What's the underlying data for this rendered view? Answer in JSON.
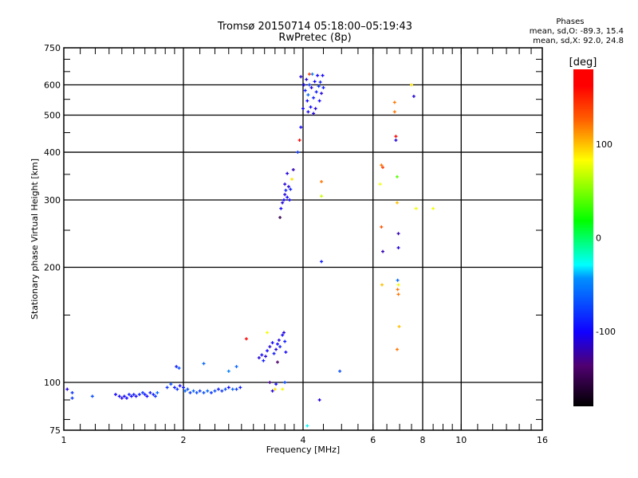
{
  "chart_data": {
    "type": "scatter",
    "title": "Tromsø 20150714 05:18:00–05:19:43",
    "subtitle": "RwPretec (8p)",
    "xlabel": "Frequency [MHz]",
    "ylabel": "Stationary phase Virtual Height [km]",
    "xscale": "log",
    "yscale": "log",
    "xlim": [
      1,
      16
    ],
    "ylim": [
      75,
      750
    ],
    "xticks": [
      "1",
      "2",
      "4",
      "6",
      "8",
      "10",
      "16"
    ],
    "xtick_values": [
      1,
      2,
      4,
      6,
      8,
      10,
      16
    ],
    "yticks": [
      "75",
      "100",
      "200",
      "300",
      "400",
      "500",
      "600",
      "750"
    ],
    "ytick_values": [
      75,
      100,
      200,
      300,
      400,
      500,
      600,
      750
    ],
    "xgrid": [
      2,
      4,
      6,
      8,
      10
    ],
    "ygrid": [
      100,
      200,
      300,
      400,
      500,
      600
    ],
    "phase_stats": {
      "header": "Phases",
      "o_line": "mean, sd,O: -89.3, 15.4",
      "x_line": "mean, sd,X:  92.0, 24.8"
    },
    "colorbar": {
      "label": "[deg]",
      "range": [
        -180,
        180
      ],
      "ticks": [
        "100",
        "0",
        "-100"
      ],
      "tick_values": [
        100,
        0,
        -100
      ],
      "colormap": "rainbow (black-purple-blue-cyan-green-yellow-red)"
    },
    "point_fields": [
      "frequency_MHz",
      "height_km",
      "phase_deg"
    ],
    "points": [
      [
        1.02,
        96,
        -110
      ],
      [
        1.05,
        94,
        -80
      ],
      [
        1.05,
        91,
        -80
      ],
      [
        1.18,
        92,
        -70
      ],
      [
        1.35,
        93,
        -100
      ],
      [
        1.38,
        92,
        -100
      ],
      [
        1.4,
        91,
        -110
      ],
      [
        1.42,
        92,
        -100
      ],
      [
        1.44,
        91,
        -100
      ],
      [
        1.46,
        93,
        -90
      ],
      [
        1.48,
        92,
        -100
      ],
      [
        1.5,
        93,
        -90
      ],
      [
        1.52,
        92,
        -100
      ],
      [
        1.55,
        93,
        -90
      ],
      [
        1.58,
        94,
        -80
      ],
      [
        1.6,
        93,
        -90
      ],
      [
        1.62,
        92,
        -100
      ],
      [
        1.65,
        94,
        -90
      ],
      [
        1.68,
        93,
        -90
      ],
      [
        1.7,
        92,
        -80
      ],
      [
        1.72,
        94,
        -60
      ],
      [
        1.82,
        97,
        -80
      ],
      [
        1.86,
        99,
        -70
      ],
      [
        1.9,
        97,
        -90
      ],
      [
        1.93,
        96,
        -80
      ],
      [
        1.96,
        98,
        -100
      ],
      [
        2.0,
        97,
        -90
      ],
      [
        2.02,
        95,
        -60
      ],
      [
        2.05,
        96,
        -70
      ],
      [
        2.08,
        94,
        -80
      ],
      [
        2.12,
        95,
        -60
      ],
      [
        2.16,
        94,
        -70
      ],
      [
        2.2,
        95,
        -80
      ],
      [
        2.25,
        94,
        -70
      ],
      [
        2.3,
        95,
        -60
      ],
      [
        2.35,
        94,
        -80
      ],
      [
        2.4,
        95,
        -70
      ],
      [
        2.45,
        96,
        -90
      ],
      [
        2.5,
        95,
        -80
      ],
      [
        2.55,
        96,
        -70
      ],
      [
        2.6,
        97,
        -100
      ],
      [
        2.66,
        96,
        -60
      ],
      [
        2.72,
        96,
        -80
      ],
      [
        2.78,
        97,
        -90
      ],
      [
        1.92,
        110,
        -90
      ],
      [
        1.95,
        109,
        -70
      ],
      [
        2.25,
        112,
        -60
      ],
      [
        2.6,
        107,
        -50
      ],
      [
        2.72,
        110,
        -60
      ],
      [
        2.88,
        130,
        170
      ],
      [
        3.1,
        116,
        -110
      ],
      [
        3.15,
        118,
        -100
      ],
      [
        3.18,
        114,
        -90
      ],
      [
        3.22,
        117,
        -110
      ],
      [
        3.25,
        121,
        -100
      ],
      [
        3.3,
        124,
        -110
      ],
      [
        3.35,
        127,
        -100
      ],
      [
        3.38,
        119,
        -90
      ],
      [
        3.42,
        122,
        -110
      ],
      [
        3.45,
        126,
        -100
      ],
      [
        3.48,
        129,
        -110
      ],
      [
        3.5,
        124,
        -90
      ],
      [
        3.55,
        133,
        -100
      ],
      [
        3.58,
        135,
        -110
      ],
      [
        3.6,
        128,
        -90
      ],
      [
        3.62,
        120,
        -100
      ],
      [
        3.25,
        135,
        80
      ],
      [
        3.45,
        113,
        -140
      ],
      [
        3.3,
        100,
        -130
      ],
      [
        3.4,
        96,
        90
      ],
      [
        3.55,
        96,
        80
      ],
      [
        3.6,
        100,
        -70
      ],
      [
        3.42,
        99,
        -100
      ],
      [
        3.35,
        95,
        -110
      ],
      [
        3.5,
        270,
        -150
      ],
      [
        3.52,
        285,
        -100
      ],
      [
        3.55,
        295,
        -110
      ],
      [
        3.58,
        300,
        -100
      ],
      [
        3.6,
        310,
        -110
      ],
      [
        3.62,
        318,
        -90
      ],
      [
        3.65,
        305,
        -100
      ],
      [
        3.68,
        325,
        -110
      ],
      [
        3.7,
        300,
        -100
      ],
      [
        3.72,
        320,
        -90
      ],
      [
        3.6,
        330,
        -110
      ],
      [
        3.75,
        340,
        90
      ],
      [
        3.65,
        352,
        -110
      ],
      [
        3.78,
        360,
        -120
      ],
      [
        3.88,
        400,
        -80
      ],
      [
        3.92,
        430,
        160
      ],
      [
        3.95,
        465,
        -100
      ],
      [
        4.02,
        600,
        -100
      ],
      [
        4.05,
        580,
        -90
      ],
      [
        4.08,
        620,
        -110
      ],
      [
        4.1,
        545,
        -100
      ],
      [
        4.12,
        565,
        -60
      ],
      [
        4.15,
        600,
        -80
      ],
      [
        4.18,
        525,
        -100
      ],
      [
        4.2,
        590,
        -110
      ],
      [
        4.22,
        640,
        -50
      ],
      [
        4.25,
        555,
        -90
      ],
      [
        4.28,
        612,
        -100
      ],
      [
        4.3,
        520,
        -110
      ],
      [
        4.32,
        575,
        -90
      ],
      [
        4.35,
        635,
        -100
      ],
      [
        4.38,
        595,
        -80
      ],
      [
        4.4,
        545,
        -100
      ],
      [
        4.42,
        610,
        -90
      ],
      [
        4.45,
        570,
        -110
      ],
      [
        4.48,
        635,
        -100
      ],
      [
        4.5,
        590,
        -90
      ],
      [
        3.95,
        630,
        -110
      ],
      [
        4.0,
        520,
        -100
      ],
      [
        4.12,
        510,
        -100
      ],
      [
        4.25,
        505,
        -110
      ],
      [
        4.15,
        640,
        140
      ],
      [
        4.45,
        335,
        120
      ],
      [
        4.45,
        307,
        70
      ],
      [
        4.45,
        207,
        -90
      ],
      [
        4.4,
        90,
        -110
      ],
      [
        4.1,
        77,
        -30
      ],
      [
        4.95,
        107,
        -70
      ],
      [
        6.3,
        370,
        120
      ],
      [
        6.35,
        365,
        140
      ],
      [
        6.25,
        330,
        80
      ],
      [
        6.3,
        255,
        130
      ],
      [
        6.35,
        220,
        -120
      ],
      [
        6.32,
        180,
        100
      ],
      [
        6.8,
        540,
        120
      ],
      [
        6.8,
        510,
        120
      ],
      [
        6.85,
        440,
        170
      ],
      [
        6.85,
        430,
        -110
      ],
      [
        6.9,
        345,
        40
      ],
      [
        6.9,
        295,
        100
      ],
      [
        6.95,
        245,
        -120
      ],
      [
        6.95,
        225,
        -110
      ],
      [
        6.92,
        185,
        -60
      ],
      [
        6.95,
        180,
        80
      ],
      [
        6.92,
        175,
        120
      ],
      [
        6.95,
        170,
        120
      ],
      [
        6.98,
        140,
        100
      ],
      [
        6.9,
        122,
        120
      ],
      [
        7.5,
        600,
        90
      ],
      [
        7.6,
        560,
        -110
      ],
      [
        7.7,
        285,
        80
      ],
      [
        8.5,
        285,
        80
      ]
    ]
  }
}
